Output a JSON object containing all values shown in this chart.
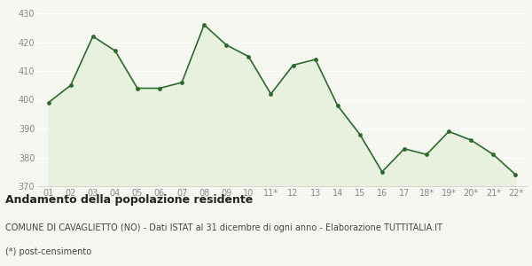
{
  "x_labels": [
    "01",
    "02",
    "03",
    "04",
    "05",
    "06",
    "07",
    "08",
    "09",
    "10",
    "11*",
    "12",
    "13",
    "14",
    "15",
    "16",
    "17",
    "18*",
    "19*",
    "20*",
    "21*",
    "22*"
  ],
  "y_values": [
    399,
    405,
    422,
    417,
    404,
    404,
    406,
    426,
    419,
    415,
    402,
    412,
    414,
    398,
    388,
    375,
    383,
    381,
    389,
    386,
    381,
    374
  ],
  "ylim": [
    370,
    430
  ],
  "yticks": [
    370,
    380,
    390,
    400,
    410,
    420,
    430
  ],
  "line_color": "#2d6a2d",
  "fill_color": "#e8f0de",
  "marker_color": "#2d6a2d",
  "bg_color": "#f7f7f2",
  "grid_color": "#ffffff",
  "title": "Andamento della popolazione residente",
  "subtitle": "COMUNE DI CAVAGLIETTO (NO) - Dati ISTAT al 31 dicembre di ogni anno - Elaborazione TUTTITALIA.IT",
  "footnote": "(*) post-censimento",
  "title_fontsize": 9,
  "subtitle_fontsize": 7,
  "footnote_fontsize": 7,
  "tick_fontsize": 7,
  "tick_color": "#888888"
}
